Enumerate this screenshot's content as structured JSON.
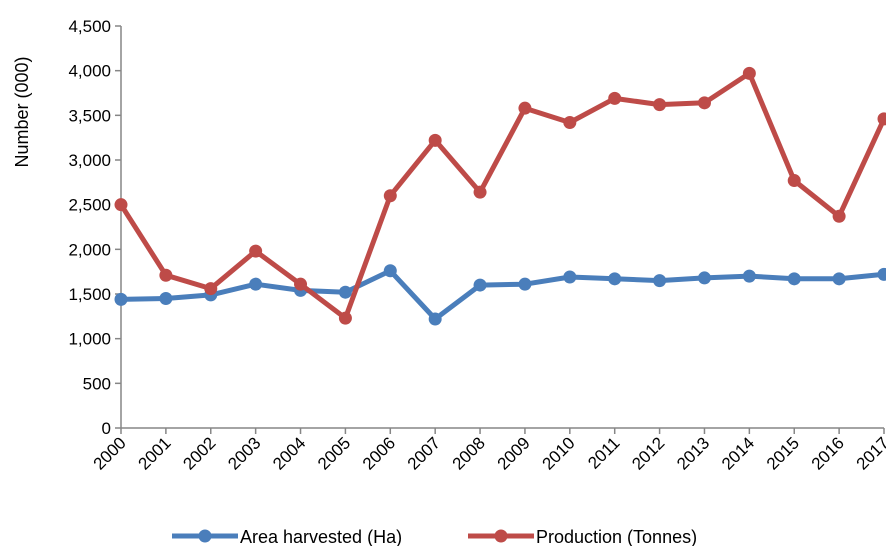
{
  "chart_data": {
    "type": "line",
    "title": "",
    "xlabel": "",
    "ylabel": "Number (000)",
    "ylim": [
      0,
      4500
    ],
    "yticks": [
      0,
      500,
      1000,
      1500,
      2000,
      2500,
      3000,
      3500,
      4000,
      4500
    ],
    "ytick_labels": [
      "0",
      "500",
      "1,000",
      "1,500",
      "2,000",
      "2,500",
      "3,000",
      "3,500",
      "4,000",
      "4,500"
    ],
    "categories": [
      "2000",
      "2001",
      "2002",
      "2003",
      "2004",
      "2005",
      "2006",
      "2007",
      "2008",
      "2009",
      "2010",
      "2011",
      "2012",
      "2013",
      "2014",
      "2015",
      "2016",
      "2017"
    ],
    "grid": false,
    "legend_position": "bottom",
    "series": [
      {
        "name": "Area harvested (Ha)",
        "color": "#4a7ebb",
        "values": [
          1440,
          1450,
          1490,
          1610,
          1540,
          1520,
          1760,
          1220,
          1600,
          1610,
          1690,
          1670,
          1650,
          1680,
          1700,
          1670,
          1670,
          1720
        ]
      },
      {
        "name": "Production (Tonnes)",
        "color": "#be4b48",
        "values": [
          2500,
          1710,
          1560,
          1980,
          1610,
          1230,
          2600,
          3220,
          2640,
          3580,
          3420,
          3690,
          3620,
          3640,
          3970,
          2770,
          2370,
          3460
        ]
      }
    ]
  }
}
